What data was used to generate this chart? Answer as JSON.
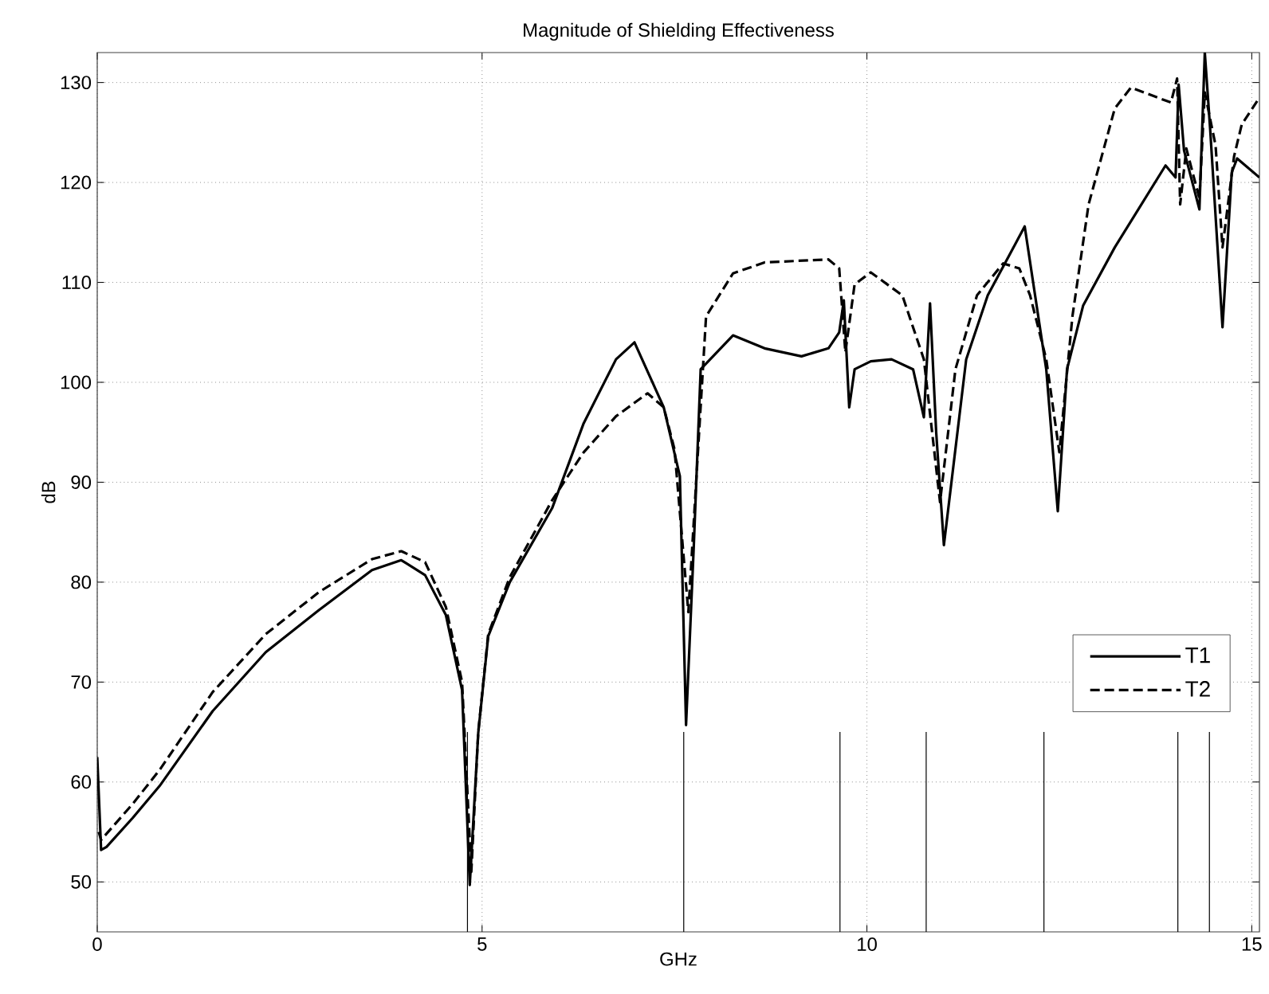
{
  "chart_data": {
    "type": "line",
    "title": "Magnitude of Shielding Effectiveness",
    "xlabel": "GHz",
    "ylabel": "dB",
    "xlim": [
      0,
      15.1
    ],
    "ylim": [
      45,
      133
    ],
    "xticks": [
      0,
      5,
      10,
      15
    ],
    "yticks": [
      50,
      60,
      70,
      80,
      90,
      100,
      110,
      120,
      130
    ],
    "grid": true,
    "legend": "bottom right",
    "series": [
      {
        "name": "T1",
        "color": "#000000",
        "line_style": "solid",
        "x": [
          0,
          0.05,
          0.12,
          0.46,
          0.81,
          1.5,
          2.19,
          2.88,
          3.57,
          3.95,
          4.26,
          4.53,
          4.74,
          4.84,
          4.95,
          5.08,
          5.36,
          5.91,
          6.32,
          6.74,
          6.98,
          7.36,
          7.57,
          7.65,
          7.75,
          7.84,
          8.26,
          8.67,
          9.15,
          9.5,
          9.64,
          9.7,
          9.77,
          9.84,
          10.05,
          10.32,
          10.6,
          10.74,
          10.82,
          10.9,
          11.0,
          11.29,
          11.57,
          12.05,
          12.33,
          12.48,
          12.6,
          12.81,
          13.22,
          13.88,
          14.01,
          14.05,
          14.12,
          14.32,
          14.39,
          14.46,
          14.62,
          14.74,
          14.81,
          15.1
        ],
        "values": [
          62.5,
          53.2,
          53.5,
          56.4,
          59.6,
          67.1,
          73.0,
          77.2,
          81.2,
          82.2,
          80.7,
          76.7,
          69.2,
          49.7,
          64.9,
          74.6,
          80.0,
          87.4,
          95.9,
          102.3,
          104.0,
          97.5,
          90.6,
          65.7,
          83.5,
          101.3,
          104.7,
          103.4,
          102.6,
          103.4,
          105.0,
          108.2,
          97.5,
          101.3,
          102.1,
          102.3,
          101.3,
          96.5,
          107.9,
          95.0,
          83.7,
          102.3,
          108.7,
          115.6,
          101.3,
          87.1,
          101.3,
          107.7,
          113.5,
          121.7,
          120.5,
          129.8,
          123.2,
          117.3,
          133.0,
          125.3,
          105.5,
          121.0,
          122.4,
          120.5
        ]
      },
      {
        "name": "T2",
        "color": "#000000",
        "line_style": "dashed",
        "x": [
          0.02,
          0.05,
          0.46,
          0.81,
          1.5,
          2.19,
          2.88,
          3.57,
          3.95,
          4.26,
          4.53,
          4.74,
          4.86,
          4.95,
          5.08,
          5.36,
          5.91,
          6.32,
          6.74,
          7.15,
          7.36,
          7.5,
          7.68,
          7.91,
          8.26,
          8.67,
          9.5,
          9.64,
          9.72,
          9.84,
          10.05,
          10.46,
          10.74,
          10.95,
          11.15,
          11.43,
          11.77,
          11.98,
          12.12,
          12.33,
          12.5,
          12.67,
          12.88,
          13.22,
          13.43,
          13.95,
          14.03,
          14.07,
          14.15,
          14.32,
          14.39,
          14.53,
          14.62,
          14.77,
          14.87,
          15.1
        ],
        "values": [
          55.0,
          54.2,
          57.8,
          61.2,
          69.0,
          74.8,
          79.0,
          82.3,
          83.1,
          82.0,
          77.5,
          70.0,
          51.0,
          65.0,
          74.8,
          80.5,
          88.2,
          93.0,
          96.6,
          98.9,
          97.5,
          93.3,
          77.0,
          106.6,
          110.9,
          112.0,
          112.3,
          111.4,
          103.0,
          109.8,
          111.0,
          108.7,
          102.3,
          88.0,
          101.3,
          108.7,
          111.9,
          111.4,
          108.7,
          102.3,
          93.0,
          106.6,
          117.8,
          127.4,
          129.5,
          128.0,
          130.4,
          117.8,
          123.4,
          118.4,
          129.0,
          123.7,
          113.5,
          122.6,
          125.8,
          128.5
        ]
      },
      {
        "color": "#000000",
        "line_style": "solid",
        "x": [
          4.81,
          4.81
        ],
        "values": [
          45,
          65
        ]
      },
      {
        "color": "#000000",
        "line_style": "solid",
        "x": [
          7.62,
          7.62
        ],
        "values": [
          45,
          65
        ]
      },
      {
        "color": "#000000",
        "line_style": "solid",
        "x": [
          9.65,
          9.65
        ],
        "values": [
          45,
          65
        ]
      },
      {
        "color": "#000000",
        "line_style": "solid",
        "x": [
          10.77,
          10.77
        ],
        "values": [
          45,
          65
        ]
      },
      {
        "color": "#000000",
        "line_style": "solid",
        "x": [
          12.3,
          12.3
        ],
        "values": [
          45,
          65
        ]
      },
      {
        "color": "#000000",
        "line_style": "solid",
        "x": [
          14.04,
          14.04
        ],
        "values": [
          45,
          65
        ]
      },
      {
        "color": "#000000",
        "line_style": "solid",
        "x": [
          14.45,
          14.45
        ],
        "values": [
          45,
          65
        ]
      }
    ]
  }
}
